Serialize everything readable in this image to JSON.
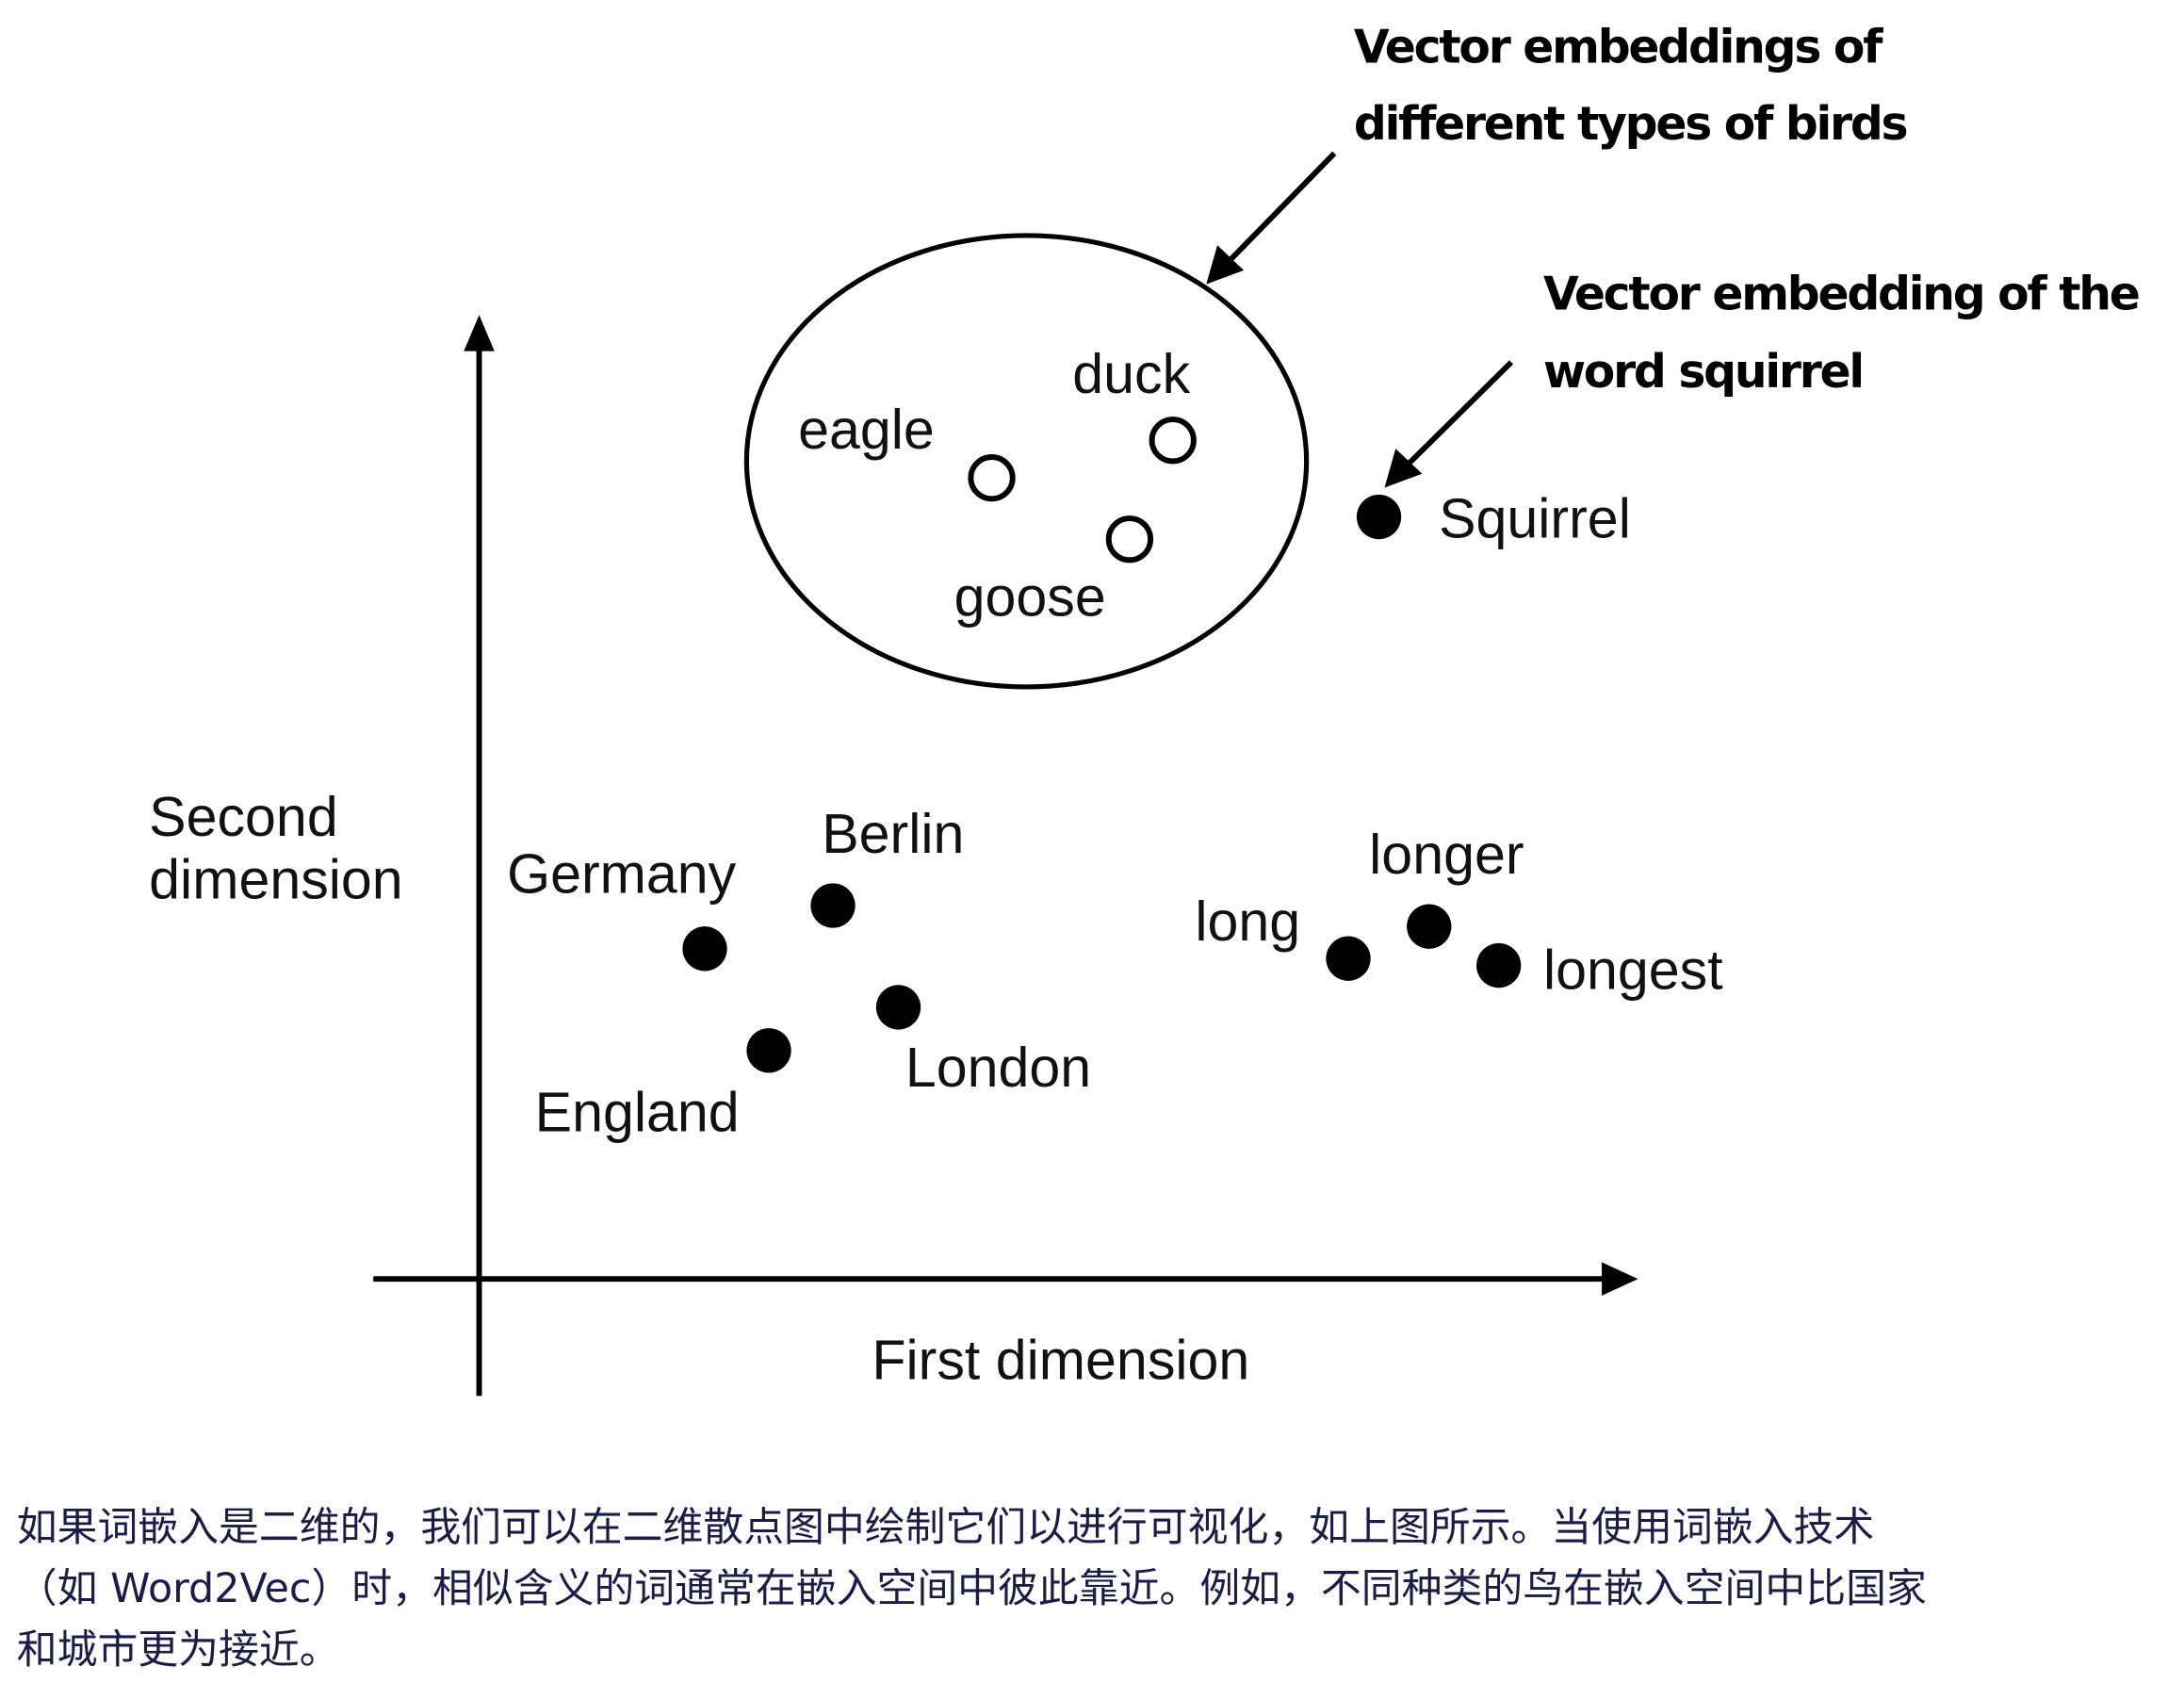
{
  "diagram": {
    "y_axis_label": [
      "Second",
      "dimension"
    ],
    "x_axis_label": "First dimension",
    "annotations": {
      "birds": [
        "Vector embeddings of",
        "different types of birds"
      ],
      "squirrel": [
        "Vector embedding of the",
        "word squirrel"
      ]
    },
    "points": {
      "eagle": {
        "label": "eagle",
        "style": "open"
      },
      "duck": {
        "label": "duck",
        "style": "open"
      },
      "goose": {
        "label": "goose",
        "style": "open"
      },
      "squirrel": {
        "label": "Squirrel",
        "style": "filled"
      },
      "germany": {
        "label": "Germany",
        "style": "filled"
      },
      "berlin": {
        "label": "Berlin",
        "style": "filled"
      },
      "london": {
        "label": "London",
        "style": "filled"
      },
      "england": {
        "label": "England",
        "style": "filled"
      },
      "long": {
        "label": "long",
        "style": "filled"
      },
      "longer": {
        "label": "longer",
        "style": "filled"
      },
      "longest": {
        "label": "longest",
        "style": "filled"
      }
    },
    "colors": {
      "ink": "#000000",
      "caption": "#1c1c48"
    }
  },
  "caption": {
    "lines": [
      "如果词嵌入是二维的，我们可以在二维散点图中绘制它们以进行可视化，如上图所示。当使用词嵌入技术",
      "（如 Word2Vec）时，相似含义的词通常在嵌入空间中彼此靠近。例如，不同种类的鸟在嵌入空间中比国家",
      "和城市更为接近。"
    ]
  }
}
